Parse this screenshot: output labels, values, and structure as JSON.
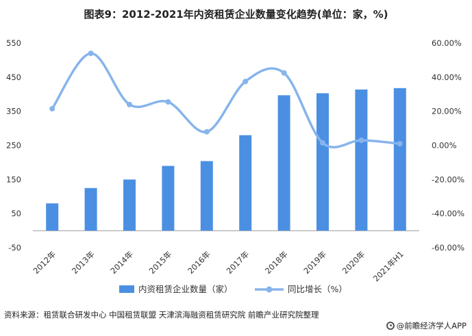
{
  "title": "图表9：2012-2021年内资租赁企业数量变化趋势(单位：家，%)",
  "source": "资料来源：租赁联合研发中心 中国租赁联盟 天津滨海融资租赁研究院 前瞻产业研究院整理",
  "credit": "@前瞻经济学人APP",
  "colors": {
    "bar": "#4b8fe3",
    "line": "#86b4ec",
    "axis_text": "#333333",
    "axis_line": "#999999"
  },
  "chart_data": {
    "type": "bar+line",
    "categories": [
      "2012年",
      "2013年",
      "2014年",
      "2015年",
      "2016年",
      "2017年",
      "2018年",
      "2019年",
      "2020年",
      "2021年H1"
    ],
    "series": [
      {
        "name": "内资租赁企业数量（家）",
        "type": "bar",
        "axis": "left",
        "values": [
          80,
          125,
          150,
          190,
          204,
          280,
          397,
          403,
          414,
          418
        ]
      },
      {
        "name": "同比增长（%）",
        "type": "line",
        "axis": "right",
        "values": [
          21.5,
          54.0,
          24.0,
          25.5,
          8.0,
          37.5,
          42.5,
          1.5,
          3.0,
          1.0
        ]
      }
    ],
    "y_left": {
      "min": -50,
      "max": 550,
      "ticks": [
        "550",
        "450",
        "350",
        "250",
        "150",
        "50",
        "-50"
      ]
    },
    "y_right": {
      "min": -60,
      "max": 60,
      "ticks": [
        "60.00%",
        "40.00%",
        "20.00%",
        "0.00%",
        "-20.00%",
        "-40.00%",
        "-60.00%"
      ]
    },
    "legend": {
      "placement": "bottom"
    },
    "grid": false
  }
}
